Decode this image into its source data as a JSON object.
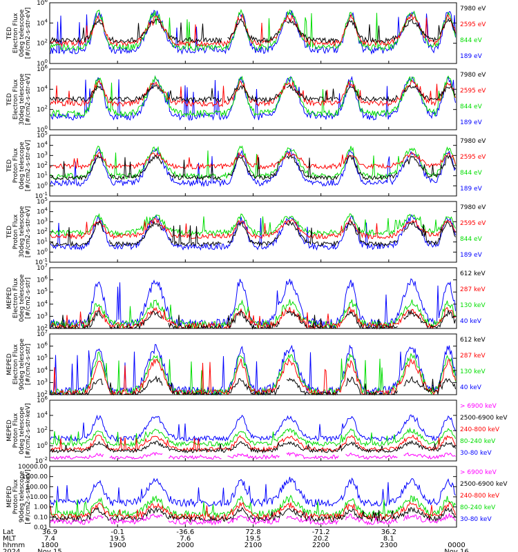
{
  "chart_data": [
    {
      "type": "line",
      "ylabel": [
        "TED",
        "Electron Flux",
        "0deg telescope",
        "[#/cm2-s-str-eV]"
      ],
      "yticks": [
        "10^0",
        "10^2",
        "10^4",
        "10^6"
      ],
      "log_range": [
        0,
        6
      ],
      "series": [
        {
          "name": "7980 eV",
          "color": "#000000"
        },
        {
          "name": "2595 eV",
          "color": "#ff0000"
        },
        {
          "name": "844 eV",
          "color": "#00dd00"
        },
        {
          "name": "189 eV",
          "color": "#0000ff"
        }
      ],
      "levels": {
        "base": [
          2.3,
          2.0,
          1.6,
          1.3
        ],
        "peak": [
          4.2,
          4.6,
          5.0,
          5.0
        ]
      }
    },
    {
      "type": "line",
      "ylabel": [
        "TED",
        "Electron Flux",
        "30deg telescope",
        "[#/cm2-s-str-eV]"
      ],
      "yticks": [
        "10^0",
        "10^2",
        "10^4",
        "10^6"
      ],
      "log_range": [
        0,
        6
      ],
      "series": [
        {
          "name": "7980 eV",
          "color": "#000000"
        },
        {
          "name": "2595 eV",
          "color": "#ff0000"
        },
        {
          "name": "844 eV",
          "color": "#00dd00"
        },
        {
          "name": "189 eV",
          "color": "#0000ff"
        }
      ],
      "levels": {
        "base": [
          3.0,
          2.6,
          1.6,
          1.3
        ],
        "peak": [
          4.2,
          4.6,
          5.0,
          5.0
        ]
      }
    },
    {
      "type": "line",
      "ylabel": [
        "TED",
        "Proton Flux",
        "0deg telescope",
        "[#/cm2-s-str-eV]"
      ],
      "yticks": [
        "10^-1",
        "10^0",
        "10^1",
        "10^2",
        "10^3",
        "10^4",
        "10^5"
      ],
      "log_range": [
        -1.5,
        5.5
      ],
      "series": [
        {
          "name": "7980 eV",
          "color": "#000000"
        },
        {
          "name": "2595 eV",
          "color": "#ff0000"
        },
        {
          "name": "844 eV",
          "color": "#00dd00"
        },
        {
          "name": "189 eV",
          "color": "#0000ff"
        }
      ],
      "levels": {
        "base": [
          0.6,
          1.9,
          0.8,
          0.0
        ],
        "peak": [
          3.0,
          3.3,
          4.0,
          3.6
        ]
      }
    },
    {
      "type": "line",
      "ylabel": [
        "TED",
        "Proton Flux",
        "30deg telescope",
        "[#/cm2-s-str-eV]"
      ],
      "yticks": [
        "10^-1",
        "10^0",
        "10^1",
        "10^2",
        "10^3",
        "10^4",
        "10^5"
      ],
      "log_range": [
        -1.5,
        5.5
      ],
      "series": [
        {
          "name": "7980 eV",
          "color": "#000000"
        },
        {
          "name": "2595 eV",
          "color": "#ff0000"
        },
        {
          "name": "844 eV",
          "color": "#00dd00"
        },
        {
          "name": "189 eV",
          "color": "#0000ff"
        }
      ],
      "levels": {
        "base": [
          0.6,
          1.5,
          1.9,
          0.3
        ],
        "peak": [
          3.0,
          3.3,
          3.8,
          3.6
        ]
      }
    },
    {
      "type": "line",
      "ylabel": [
        "MEPED",
        "Electron Flux",
        "0deg telescope",
        "[#/cm2-s-str]"
      ],
      "yticks": [
        "10^2",
        "10^3",
        "10^4",
        "10^5",
        "10^6",
        "10^7"
      ],
      "log_range": [
        2,
        7
      ],
      "series": [
        {
          "name": "612 keV",
          "color": "#000000"
        },
        {
          "name": "287 keV",
          "color": "#ff0000"
        },
        {
          "name": "130 keV",
          "color": "#00dd00"
        },
        {
          "name": "40 keV",
          "color": "#0000ff"
        }
      ],
      "levels": {
        "base": [
          2.0,
          2.2,
          2.3,
          2.4
        ],
        "peak": [
          3.3,
          3.5,
          4.1,
          5.8
        ]
      }
    },
    {
      "type": "line",
      "ylabel": [
        "MEPED",
        "Electron Flux",
        "90deg telescope",
        "[#/cm2-s-str]"
      ],
      "yticks": [
        "10^2",
        "10^3",
        "10^4",
        "10^5",
        "10^6",
        "10^7"
      ],
      "log_range": [
        2,
        7
      ],
      "series": [
        {
          "name": "612 keV",
          "color": "#000000"
        },
        {
          "name": "287 keV",
          "color": "#ff0000"
        },
        {
          "name": "130 keV",
          "color": "#00dd00"
        },
        {
          "name": "40 keV",
          "color": "#0000ff"
        }
      ],
      "levels": {
        "base": [
          2.0,
          2.1,
          2.2,
          2.3
        ],
        "peak": [
          3.3,
          4.7,
          5.2,
          5.8
        ]
      }
    },
    {
      "type": "line",
      "ylabel": [
        "MEPED",
        "Proton Flux",
        "0deg telescope",
        "[#/cm2-s-str-keV]"
      ],
      "yticks": [
        "10^-2",
        "10^0",
        "10^2",
        "10^4",
        "10^6"
      ],
      "log_range": [
        -3,
        6
      ],
      "series": [
        {
          "name": "> 6900 keV",
          "color": "#ff00ff"
        },
        {
          "name": "2500-6900 keV",
          "color": "#000000"
        },
        {
          "name": "240-800 keV",
          "color": "#ff0000"
        },
        {
          "name": "80-240 keV",
          "color": "#00dd00"
        },
        {
          "name": "30-80 keV",
          "color": "#0000ff"
        }
      ],
      "levels": {
        "base": [
          -2.5,
          -1.5,
          -1.3,
          -0.5,
          0.3
        ],
        "peak": [
          -2.0,
          -0.3,
          0.6,
          1.5,
          3.5
        ]
      }
    },
    {
      "type": "line",
      "ylabel": [
        "MEPED",
        "Proton Flux",
        "90deg telescope",
        "[#/cm2-s-str-keV]"
      ],
      "yticks": [
        "0.01",
        "0.10",
        "1.00",
        "10.00",
        "100.00",
        "1000.00",
        "10000.00"
      ],
      "log_range": [
        -2,
        4
      ],
      "series": [
        {
          "name": "> 6900 keV",
          "color": "#ff00ff"
        },
        {
          "name": "2500-6900 keV",
          "color": "#000000"
        },
        {
          "name": "240-800 keV",
          "color": "#ff0000"
        },
        {
          "name": "80-240 keV",
          "color": "#00dd00"
        },
        {
          "name": "30-80 keV",
          "color": "#0000ff"
        }
      ],
      "levels": {
        "base": [
          -1.5,
          -1.2,
          -1.0,
          -0.7,
          0.4
        ],
        "peak": [
          -0.9,
          -0.3,
          0.2,
          0.8,
          2.6
        ]
      }
    }
  ],
  "time_axis": {
    "labels": [
      "Lat",
      "MLT",
      "hhmm",
      "2024"
    ],
    "cols": [
      [
        "36.9",
        "7.4",
        "1800",
        "Nov 15"
      ],
      [
        "-0.1",
        "19.5",
        "1900",
        ""
      ],
      [
        "-36.6",
        "7.6",
        "2000",
        ""
      ],
      [
        "72.8",
        "19.5",
        "2100",
        ""
      ],
      [
        "-71.2",
        "20.2",
        "2200",
        ""
      ],
      [
        "36.2",
        "8.1",
        "2300",
        ""
      ],
      [
        "",
        "",
        "0000",
        "Nov 16"
      ]
    ]
  },
  "passes": [
    0.12,
    0.26,
    0.47,
    0.59,
    0.74,
    0.89,
    0.98
  ]
}
